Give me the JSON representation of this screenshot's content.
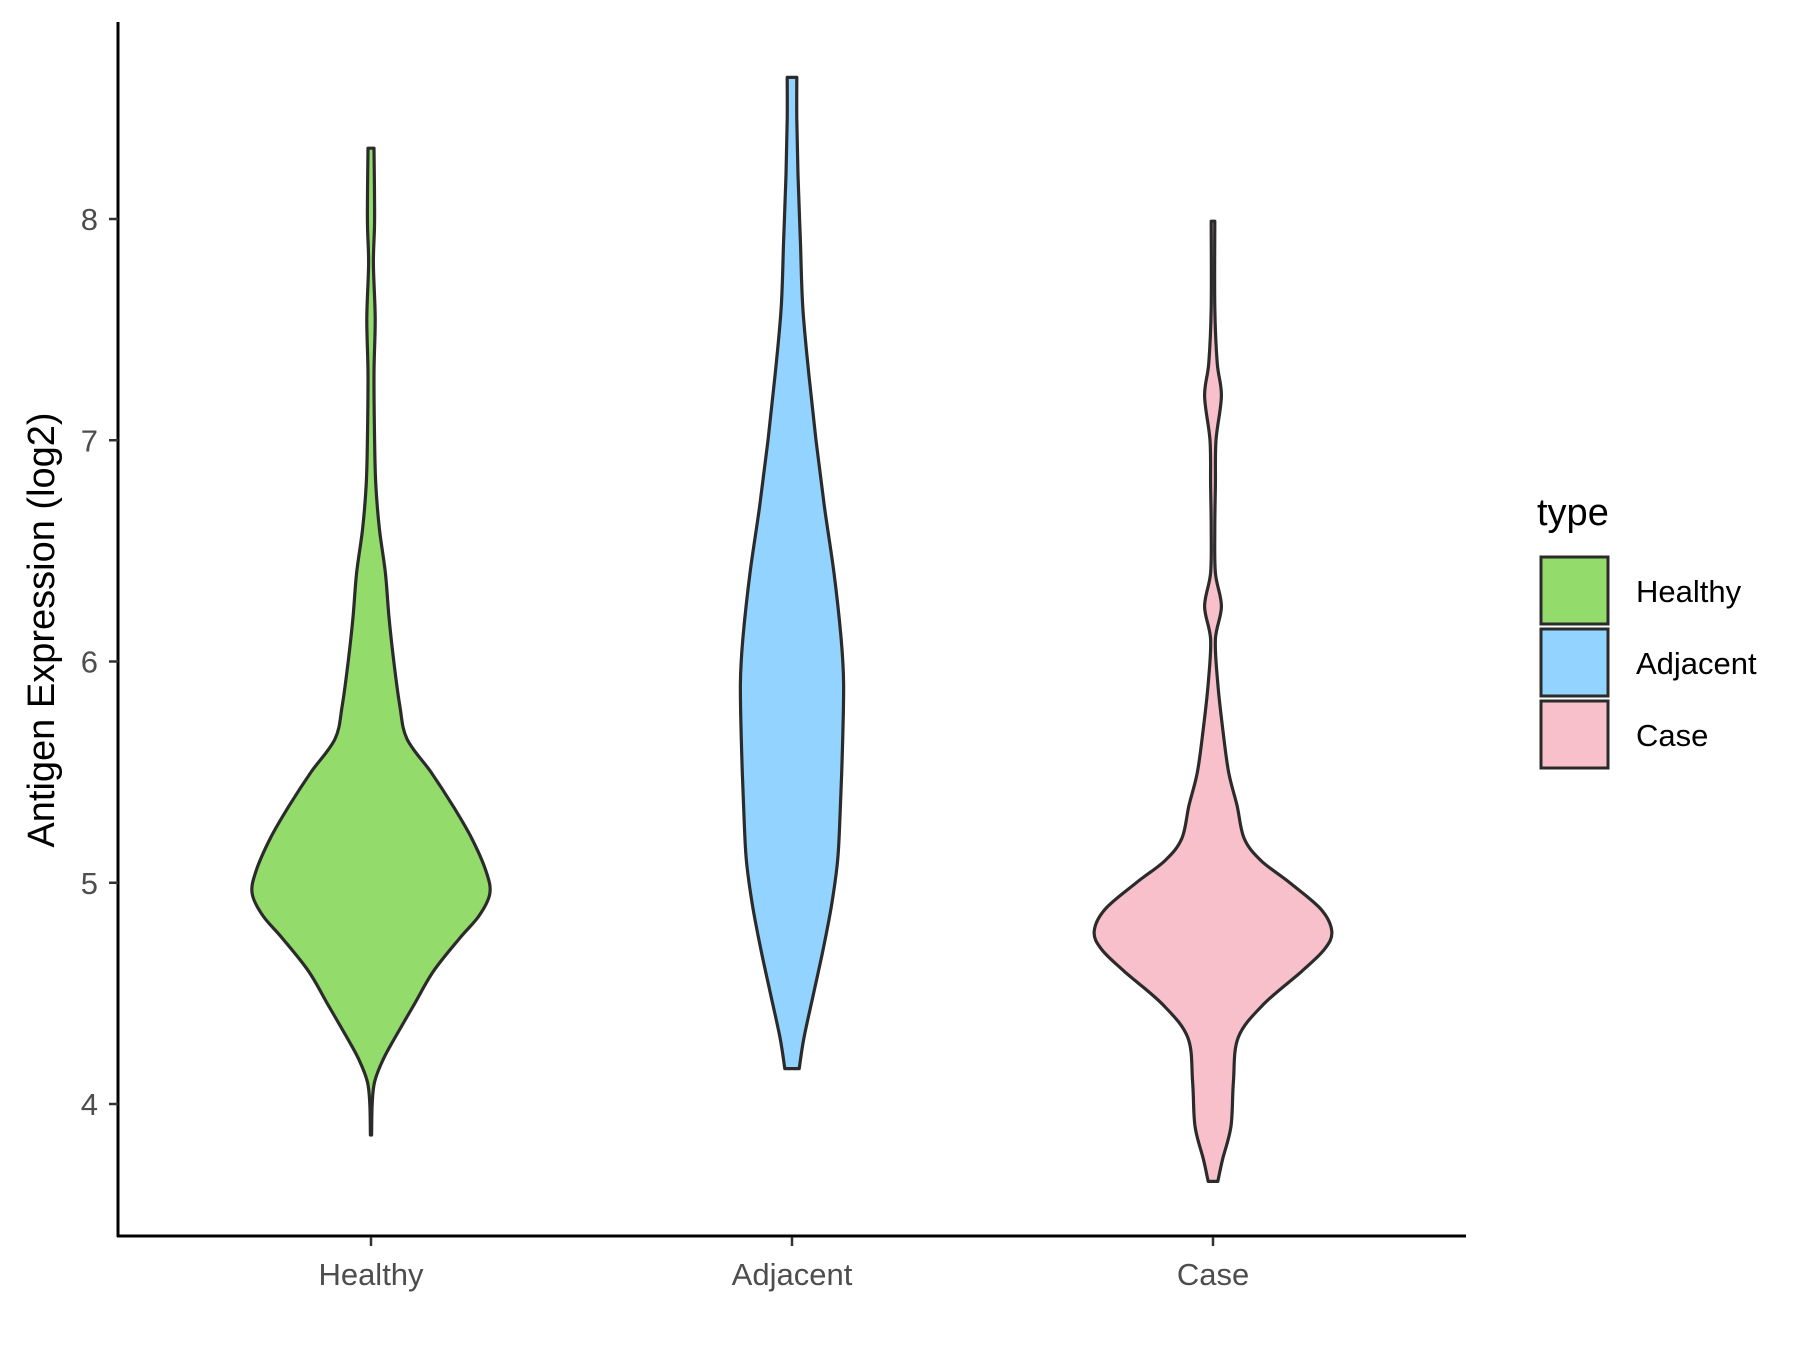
{
  "chart_data": {
    "type": "violin",
    "title": "",
    "xlabel": "",
    "ylabel": "Antigen Expression (log2)",
    "ylim": [
      3.45,
      8.9
    ],
    "yticks": [
      4,
      5,
      6,
      7,
      8
    ],
    "ytick_labels": [
      "4",
      "5",
      "6",
      "7",
      "8"
    ],
    "categories": [
      "Healthy",
      "Adjacent",
      "Case"
    ],
    "grid": false,
    "legend": {
      "title": "type",
      "position": "right",
      "entries": [
        "Healthy",
        "Adjacent",
        "Case"
      ]
    },
    "colors": {
      "Healthy": "#93DB6B",
      "Adjacent": "#93D3FF",
      "Case": "#F7C0CB",
      "outline": "#2b2b2b"
    },
    "series": [
      {
        "name": "Healthy",
        "min": 3.86,
        "max": 8.32,
        "profile": [
          [
            3.86,
            0.005
          ],
          [
            4.0,
            0.01
          ],
          [
            4.1,
            0.03
          ],
          [
            4.2,
            0.1
          ],
          [
            4.3,
            0.2
          ],
          [
            4.45,
            0.36
          ],
          [
            4.6,
            0.52
          ],
          [
            4.75,
            0.74
          ],
          [
            4.85,
            0.9
          ],
          [
            4.95,
            0.99
          ],
          [
            5.05,
            0.96
          ],
          [
            5.2,
            0.84
          ],
          [
            5.35,
            0.68
          ],
          [
            5.5,
            0.5
          ],
          [
            5.65,
            0.3
          ],
          [
            5.8,
            0.24
          ],
          [
            6.0,
            0.19
          ],
          [
            6.2,
            0.15
          ],
          [
            6.4,
            0.12
          ],
          [
            6.6,
            0.07
          ],
          [
            6.8,
            0.04
          ],
          [
            7.0,
            0.03
          ],
          [
            7.3,
            0.025
          ],
          [
            7.55,
            0.035
          ],
          [
            7.8,
            0.02
          ],
          [
            8.0,
            0.03
          ],
          [
            8.32,
            0.025
          ]
        ]
      },
      {
        "name": "Adjacent",
        "min": 4.16,
        "max": 8.64,
        "profile": [
          [
            4.16,
            0.06
          ],
          [
            4.3,
            0.1
          ],
          [
            4.5,
            0.18
          ],
          [
            4.7,
            0.26
          ],
          [
            4.9,
            0.33
          ],
          [
            5.1,
            0.38
          ],
          [
            5.3,
            0.4
          ],
          [
            5.6,
            0.42
          ],
          [
            5.9,
            0.43
          ],
          [
            6.1,
            0.41
          ],
          [
            6.4,
            0.35
          ],
          [
            6.7,
            0.27
          ],
          [
            7.0,
            0.2
          ],
          [
            7.3,
            0.14
          ],
          [
            7.6,
            0.09
          ],
          [
            7.9,
            0.07
          ],
          [
            8.2,
            0.05
          ],
          [
            8.45,
            0.04
          ],
          [
            8.64,
            0.04
          ]
        ]
      },
      {
        "name": "Case",
        "min": 3.65,
        "max": 7.99,
        "profile": [
          [
            3.65,
            0.04
          ],
          [
            3.75,
            0.08
          ],
          [
            3.9,
            0.15
          ],
          [
            4.1,
            0.17
          ],
          [
            4.3,
            0.21
          ],
          [
            4.45,
            0.42
          ],
          [
            4.6,
            0.74
          ],
          [
            4.7,
            0.93
          ],
          [
            4.78,
            0.99
          ],
          [
            4.88,
            0.9
          ],
          [
            5.0,
            0.64
          ],
          [
            5.1,
            0.4
          ],
          [
            5.2,
            0.26
          ],
          [
            5.35,
            0.2
          ],
          [
            5.5,
            0.13
          ],
          [
            5.7,
            0.08
          ],
          [
            5.9,
            0.04
          ],
          [
            6.1,
            0.02
          ],
          [
            6.25,
            0.07
          ],
          [
            6.4,
            0.02
          ],
          [
            6.6,
            0.015
          ],
          [
            6.8,
            0.02
          ],
          [
            7.0,
            0.025
          ],
          [
            7.2,
            0.07
          ],
          [
            7.35,
            0.035
          ],
          [
            7.6,
            0.015
          ],
          [
            7.99,
            0.015
          ]
        ]
      }
    ]
  }
}
